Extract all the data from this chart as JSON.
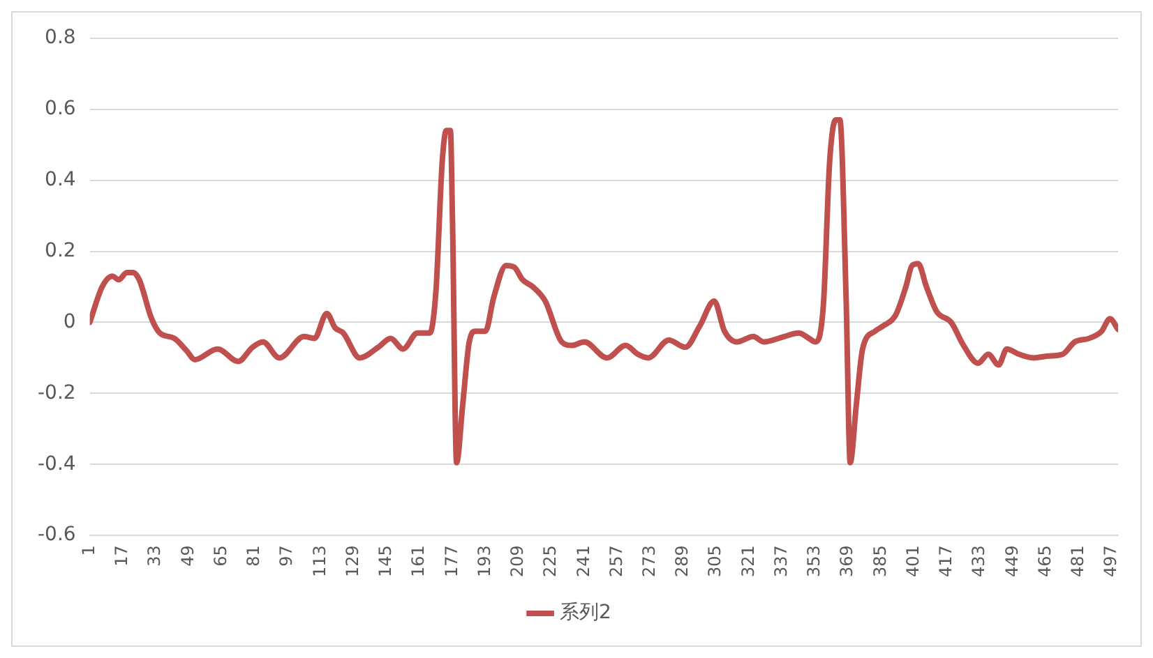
{
  "chart_data": {
    "type": "line",
    "legend": "bottom",
    "grid": "y",
    "marker": "none",
    "line_style": "solid",
    "xlim": [
      1,
      500
    ],
    "xticks": [
      1,
      17,
      33,
      49,
      65,
      81,
      97,
      113,
      129,
      145,
      161,
      177,
      193,
      209,
      225,
      241,
      257,
      273,
      289,
      305,
      321,
      337,
      353,
      369,
      385,
      401,
      417,
      433,
      449,
      465,
      481,
      497
    ],
    "ylim": [
      -0.6,
      0.8
    ],
    "yticks": [
      -0.6,
      -0.4,
      -0.2,
      0,
      0.2,
      0.4,
      0.6,
      0.8
    ],
    "series": [
      {
        "name": "系列2",
        "color": "#c0504d",
        "x": [
          1,
          7,
          12,
          15,
          19,
          22,
          25,
          31,
          35,
          42,
          48,
          52,
          63,
          73,
          80,
          85,
          93,
          105,
          110,
          116,
          120,
          124,
          132,
          141,
          147,
          153,
          160,
          166,
          169,
          172,
          174,
          176,
          177,
          179,
          182,
          185,
          188,
          193,
          197,
          203,
          207,
          211,
          216,
          222,
          230,
          235,
          241,
          252,
          261,
          267,
          272,
          282,
          290,
          297,
          304,
          309,
          315,
          323,
          328,
          338,
          345,
          350,
          353,
          357,
          360,
          363,
          365,
          368,
          370,
          373,
          376,
          382,
          386,
          392,
          397,
          400,
          403,
          407,
          412,
          419,
          425,
          432,
          437,
          442,
          446,
          452,
          459,
          466,
          473,
          479,
          486,
          492,
          496,
          500
        ],
        "values": [
          0,
          0.1,
          0.13,
          0.12,
          0.14,
          0.14,
          0.12,
          0.01,
          -0.03,
          -0.045,
          -0.08,
          -0.105,
          -0.075,
          -0.11,
          -0.07,
          -0.055,
          -0.1,
          -0.04,
          -0.045,
          0.025,
          -0.015,
          -0.03,
          -0.1,
          -0.07,
          -0.045,
          -0.075,
          -0.03,
          -0.03,
          0.09,
          0.45,
          0.54,
          0.54,
          0.29,
          -0.395,
          -0.23,
          -0.06,
          -0.025,
          -0.025,
          0.07,
          0.16,
          0.155,
          0.12,
          0.1,
          0.06,
          -0.055,
          -0.065,
          -0.055,
          -0.1,
          -0.065,
          -0.09,
          -0.1,
          -0.05,
          -0.07,
          -0.01,
          0.06,
          -0.025,
          -0.055,
          -0.04,
          -0.055,
          -0.04,
          -0.03,
          -0.045,
          -0.055,
          0.05,
          0.45,
          0.57,
          0.57,
          0.07,
          -0.395,
          -0.23,
          -0.075,
          -0.025,
          -0.01,
          0.02,
          0.1,
          0.16,
          0.165,
          0.1,
          0.03,
          0,
          -0.065,
          -0.115,
          -0.09,
          -0.12,
          -0.075,
          -0.09,
          -0.1,
          -0.095,
          -0.09,
          -0.055,
          -0.045,
          -0.025,
          0.01,
          -0.02
        ]
      }
    ]
  }
}
